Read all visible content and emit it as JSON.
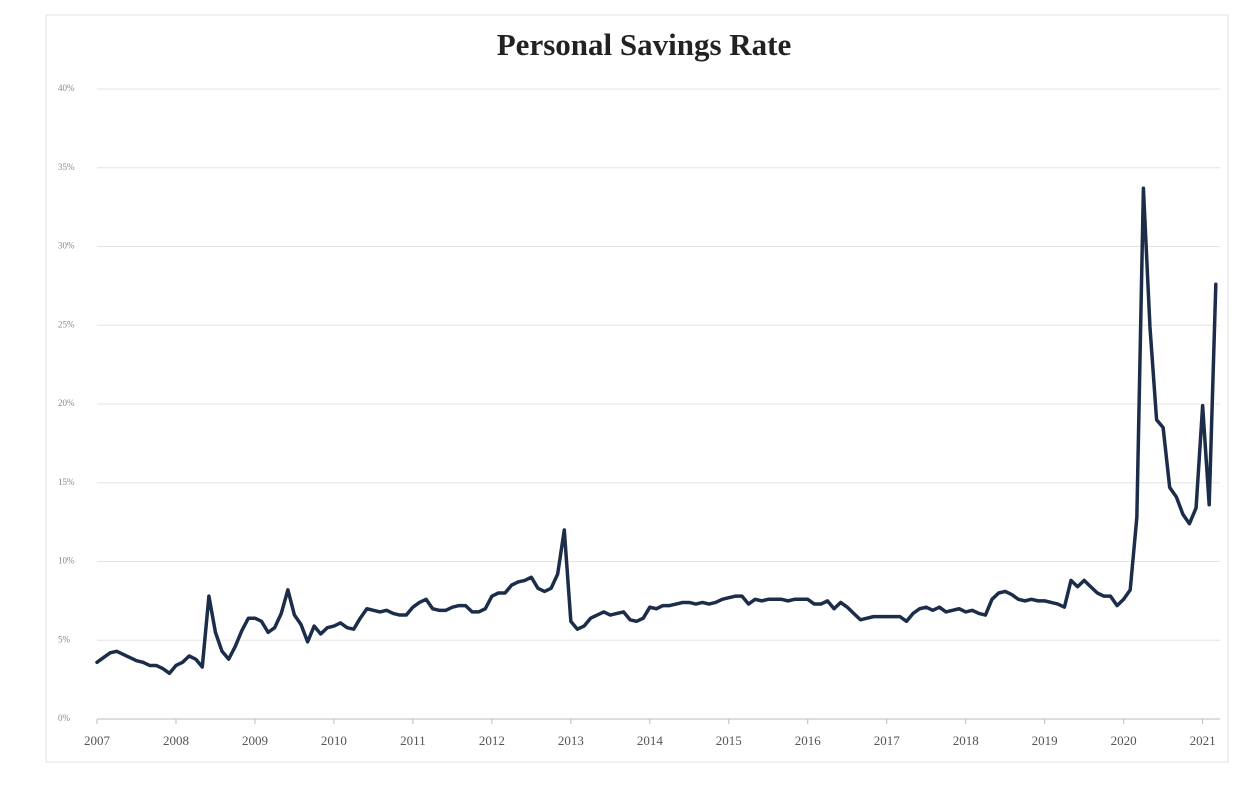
{
  "chart_data": {
    "type": "line",
    "title": "Personal Savings Rate",
    "xlim": [
      2007,
      2021.22
    ],
    "xticks": [
      2007,
      2008,
      2009,
      2010,
      2011,
      2012,
      2013,
      2014,
      2015,
      2016,
      2017,
      2018,
      2019,
      2020,
      2021
    ],
    "ylim": [
      0,
      40
    ],
    "yticks": [
      {
        "value": 0,
        "label": "0%"
      },
      {
        "value": 5,
        "label": "5%"
      },
      {
        "value": 10,
        "label": "10%"
      },
      {
        "value": 15,
        "label": "15%"
      },
      {
        "value": 20,
        "label": "20%"
      },
      {
        "value": 25,
        "label": "25%"
      },
      {
        "value": 30,
        "label": "30%"
      },
      {
        "value": 35,
        "label": "35%"
      },
      {
        "value": 40,
        "label": "40%"
      }
    ],
    "grid": true,
    "x": [
      2007,
      2007.083,
      2007.167,
      2007.25,
      2007.333,
      2007.417,
      2007.5,
      2007.583,
      2007.667,
      2007.75,
      2007.833,
      2007.917,
      2008,
      2008.083,
      2008.167,
      2008.25,
      2008.333,
      2008.417,
      2008.5,
      2008.583,
      2008.667,
      2008.75,
      2008.833,
      2008.917,
      2009,
      2009.083,
      2009.167,
      2009.25,
      2009.333,
      2009.417,
      2009.5,
      2009.583,
      2009.667,
      2009.75,
      2009.833,
      2009.917,
      2010,
      2010.083,
      2010.167,
      2010.25,
      2010.333,
      2010.417,
      2010.5,
      2010.583,
      2010.667,
      2010.75,
      2010.833,
      2010.917,
      2011,
      2011.083,
      2011.167,
      2011.25,
      2011.333,
      2011.417,
      2011.5,
      2011.583,
      2011.667,
      2011.75,
      2011.833,
      2011.917,
      2012,
      2012.083,
      2012.167,
      2012.25,
      2012.333,
      2012.417,
      2012.5,
      2012.583,
      2012.667,
      2012.75,
      2012.833,
      2012.917,
      2013,
      2013.083,
      2013.167,
      2013.25,
      2013.333,
      2013.417,
      2013.5,
      2013.583,
      2013.667,
      2013.75,
      2013.833,
      2013.917,
      2014,
      2014.083,
      2014.167,
      2014.25,
      2014.333,
      2014.417,
      2014.5,
      2014.583,
      2014.667,
      2014.75,
      2014.833,
      2014.917,
      2015,
      2015.083,
      2015.167,
      2015.25,
      2015.333,
      2015.417,
      2015.5,
      2015.583,
      2015.667,
      2015.75,
      2015.833,
      2015.917,
      2016,
      2016.083,
      2016.167,
      2016.25,
      2016.333,
      2016.417,
      2016.5,
      2016.583,
      2016.667,
      2016.75,
      2016.833,
      2016.917,
      2017,
      2017.083,
      2017.167,
      2017.25,
      2017.333,
      2017.417,
      2017.5,
      2017.583,
      2017.667,
      2017.75,
      2017.833,
      2017.917,
      2018,
      2018.083,
      2018.167,
      2018.25,
      2018.333,
      2018.417,
      2018.5,
      2018.583,
      2018.667,
      2018.75,
      2018.833,
      2018.917,
      2019,
      2019.083,
      2019.167,
      2019.25,
      2019.333,
      2019.417,
      2019.5,
      2019.583,
      2019.667,
      2019.75,
      2019.833,
      2019.917,
      2020,
      2020.083,
      2020.167,
      2020.25,
      2020.333,
      2020.417,
      2020.5,
      2020.583,
      2020.667,
      2020.75,
      2020.833,
      2020.917,
      2021,
      2021.083,
      2021.167
    ],
    "series": [
      {
        "color": "#1c2d4a",
        "values": [
          3.6,
          3.9,
          4.2,
          4.3,
          4.1,
          3.9,
          3.7,
          3.6,
          3.4,
          3.4,
          3.2,
          2.9,
          3.4,
          3.6,
          4.0,
          3.8,
          3.3,
          7.8,
          5.5,
          4.3,
          3.8,
          4.6,
          5.6,
          6.4,
          6.4,
          6.2,
          5.5,
          5.8,
          6.7,
          8.2,
          6.6,
          6.0,
          4.9,
          5.9,
          5.4,
          5.8,
          5.9,
          6.1,
          5.8,
          5.7,
          6.4,
          7.0,
          6.9,
          6.8,
          6.9,
          6.7,
          6.6,
          6.6,
          7.1,
          7.4,
          7.6,
          7.0,
          6.9,
          6.9,
          7.1,
          7.2,
          7.2,
          6.8,
          6.8,
          7.0,
          7.8,
          8.0,
          8.0,
          8.5,
          8.7,
          8.8,
          9.0,
          8.3,
          8.1,
          8.3,
          9.2,
          12.0,
          6.2,
          5.7,
          5.9,
          6.4,
          6.6,
          6.8,
          6.6,
          6.7,
          6.8,
          6.3,
          6.2,
          6.4,
          7.1,
          7.0,
          7.2,
          7.2,
          7.3,
          7.4,
          7.4,
          7.3,
          7.4,
          7.3,
          7.4,
          7.6,
          7.7,
          7.8,
          7.8,
          7.3,
          7.6,
          7.5,
          7.6,
          7.6,
          7.6,
          7.5,
          7.6,
          7.6,
          7.6,
          7.3,
          7.3,
          7.5,
          7.0,
          7.4,
          7.1,
          6.7,
          6.3,
          6.4,
          6.5,
          6.5,
          6.5,
          6.5,
          6.5,
          6.2,
          6.7,
          7.0,
          7.1,
          6.9,
          7.1,
          6.8,
          6.9,
          7.0,
          6.8,
          6.9,
          6.7,
          6.6,
          7.6,
          8.0,
          8.1,
          7.9,
          7.6,
          7.5,
          7.6,
          7.5,
          7.5,
          7.4,
          7.3,
          7.1,
          8.8,
          8.4,
          8.8,
          8.4,
          8.0,
          7.8,
          7.8,
          7.2,
          7.6,
          8.2,
          12.8,
          33.7,
          24.9,
          19.0,
          18.5,
          14.7,
          14.1,
          13.0,
          12.4,
          13.4,
          19.9,
          13.6,
          27.6
        ]
      }
    ]
  }
}
